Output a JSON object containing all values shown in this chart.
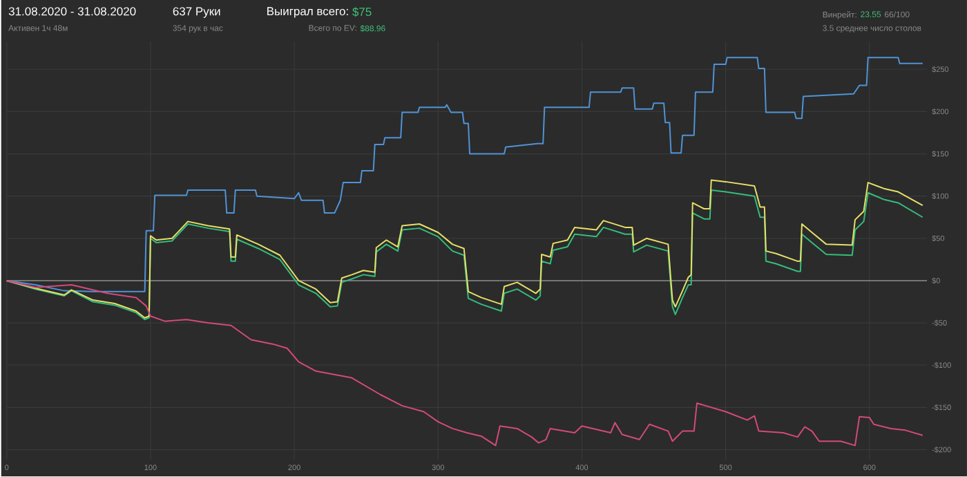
{
  "chart_data": {
    "type": "line",
    "title": "31.08.2020 - 31.08.2020",
    "subtitle": "Активен 1ч 48м",
    "annotations": [
      "637 Руки",
      "354 рук в час",
      "Выиграл всего:",
      "$75",
      "Всего по EV:",
      "$88.96",
      "Винрейт:",
      "23.55",
      "66/100",
      "3.5 среднее число столов"
    ],
    "xlim": [
      0,
      640
    ],
    "ylim": [
      -212,
      283
    ],
    "xticks": [
      0,
      100,
      200,
      300,
      400,
      500,
      600
    ],
    "yticks": [
      {
        "value": -200,
        "label": "-$200"
      },
      {
        "value": -150,
        "label": "-$150"
      },
      {
        "value": -100,
        "label": "-$100"
      },
      {
        "value": -50,
        "label": "-$50"
      },
      {
        "value": 0,
        "label": "$0"
      },
      {
        "value": 50,
        "label": "$50"
      },
      {
        "value": 100,
        "label": "$100"
      },
      {
        "value": 150,
        "label": "$150"
      },
      {
        "value": 200,
        "label": "$200"
      },
      {
        "value": 250,
        "label": "$250"
      }
    ],
    "grid": true,
    "marker": "none",
    "line_style": "solid",
    "ref_lines": [
      {
        "axis": "y",
        "value": 0,
        "color": "#8c8c8c"
      }
    ],
    "series": [
      {
        "color": "#4f93d6",
        "x": [
          0,
          20,
          40,
          60,
          96,
          97,
          102,
          103,
          125,
          126,
          152,
          153,
          158,
          159,
          173,
          174,
          200,
          203,
          205,
          220,
          221,
          228,
          232,
          234,
          246,
          247,
          255,
          256,
          262,
          263,
          274,
          275,
          286,
          287,
          305,
          306,
          309,
          317,
          318,
          321,
          322,
          346,
          347,
          369,
          373,
          374,
          405,
          406,
          427,
          428,
          436,
          437,
          449,
          450,
          457,
          458,
          461,
          462,
          469,
          470,
          478,
          479,
          491,
          492,
          500,
          501,
          522,
          523,
          527,
          528,
          548,
          549,
          553,
          554,
          589,
          593,
          598,
          599,
          620,
          621,
          637
        ],
        "values": [
          0,
          -5,
          -12,
          -13,
          -13,
          59,
          59,
          101,
          101,
          107,
          107,
          80,
          80,
          107,
          107,
          100,
          97,
          104,
          95,
          95,
          80,
          80,
          95,
          116,
          116,
          130,
          130,
          161,
          161,
          169,
          169,
          199,
          199,
          205,
          205,
          208,
          199,
          199,
          186,
          186,
          150,
          150,
          158,
          162,
          162,
          205,
          205,
          223,
          223,
          228,
          228,
          203,
          203,
          210,
          210,
          187,
          187,
          151,
          151,
          172,
          172,
          223,
          223,
          256,
          256,
          264,
          264,
          251,
          251,
          199,
          199,
          192,
          192,
          218,
          221,
          231,
          231,
          264,
          264,
          257,
          257
        ]
      },
      {
        "color": "#35bd7c",
        "x": [
          0,
          20,
          40,
          45,
          60,
          75,
          90,
          96,
          99,
          100,
          104,
          115,
          126,
          140,
          155,
          156,
          159,
          160,
          175,
          190,
          203,
          215,
          225,
          230,
          233,
          240,
          248,
          256,
          257,
          264,
          272,
          275,
          287,
          300,
          310,
          318,
          321,
          330,
          344,
          346,
          355,
          368,
          371,
          372,
          378,
          380,
          390,
          395,
          410,
          415,
          430,
          435,
          436,
          445,
          460,
          462,
          463,
          465,
          470,
          474,
          476,
          477,
          485,
          489,
          490,
          500,
          520,
          524,
          527,
          528,
          535,
          550,
          552,
          553,
          560,
          570,
          588,
          590,
          596,
          599,
          610,
          620,
          637
        ],
        "values": [
          0,
          -10,
          -18,
          -12,
          -25,
          -29,
          -38,
          -46,
          -44,
          50,
          45,
          47,
          67,
          62,
          58,
          23,
          23,
          49,
          38,
          25,
          -5,
          -15,
          -31,
          -30,
          -2,
          2,
          7,
          5,
          34,
          43,
          35,
          60,
          62,
          52,
          35,
          30,
          -21,
          -28,
          -36,
          -15,
          -10,
          -23,
          -18,
          23,
          20,
          36,
          40,
          55,
          52,
          63,
          55,
          55,
          34,
          42,
          35,
          -10,
          -31,
          -40,
          -20,
          -5,
          -5,
          80,
          73,
          73,
          107,
          105,
          100,
          75,
          75,
          23,
          20,
          11,
          11,
          55,
          45,
          31,
          30,
          60,
          70,
          104,
          96,
          92,
          75
        ]
      },
      {
        "color": "#e6e068",
        "x": [
          0,
          20,
          40,
          45,
          60,
          75,
          90,
          96,
          99,
          100,
          104,
          115,
          126,
          140,
          155,
          156,
          159,
          160,
          175,
          190,
          203,
          215,
          225,
          230,
          233,
          240,
          248,
          256,
          257,
          264,
          272,
          275,
          287,
          300,
          310,
          318,
          321,
          330,
          344,
          346,
          355,
          368,
          371,
          372,
          378,
          380,
          390,
          395,
          410,
          415,
          430,
          435,
          436,
          445,
          460,
          462,
          463,
          465,
          470,
          474,
          476,
          477,
          485,
          489,
          490,
          500,
          520,
          524,
          527,
          528,
          535,
          550,
          552,
          553,
          560,
          570,
          588,
          590,
          596,
          599,
          610,
          620,
          637
        ],
        "values": [
          0,
          -9,
          -17,
          -11,
          -23,
          -27,
          -36,
          -44,
          -42,
          53,
          48,
          50,
          70,
          65,
          61,
          28,
          28,
          54,
          43,
          30,
          0,
          -10,
          -26,
          -25,
          3,
          7,
          12,
          10,
          39,
          48,
          40,
          65,
          67,
          57,
          43,
          38,
          -13,
          -20,
          -28,
          -7,
          -2,
          -15,
          -10,
          31,
          28,
          44,
          48,
          63,
          60,
          71,
          63,
          63,
          42,
          50,
          43,
          -2,
          -23,
          -31,
          -12,
          4,
          7,
          92,
          85,
          85,
          119,
          117,
          112,
          87,
          87,
          35,
          32,
          23,
          23,
          67,
          57,
          43,
          42,
          72,
          82,
          116,
          109,
          105,
          89
        ]
      },
      {
        "color": "#d44a78",
        "x": [
          0,
          20,
          45,
          70,
          90,
          97,
          100,
          110,
          125,
          140,
          156,
          170,
          185,
          195,
          203,
          215,
          240,
          260,
          275,
          290,
          300,
          310,
          320,
          330,
          340,
          343,
          355,
          365,
          370,
          375,
          378,
          395,
          400,
          420,
          423,
          428,
          440,
          447,
          460,
          463,
          470,
          478,
          480,
          500,
          515,
          520,
          523,
          540,
          550,
          555,
          560,
          565,
          580,
          590,
          593,
          600,
          603,
          615,
          625,
          637
        ],
        "values": [
          0,
          -8,
          -5,
          -15,
          -20,
          -30,
          -42,
          -48,
          -46,
          -50,
          -53,
          -70,
          -75,
          -80,
          -96,
          -107,
          -115,
          -135,
          -148,
          -155,
          -167,
          -175,
          -180,
          -184,
          -195,
          -172,
          -175,
          -185,
          -192,
          -188,
          -175,
          -180,
          -172,
          -180,
          -168,
          -182,
          -188,
          -170,
          -178,
          -190,
          -178,
          -178,
          -145,
          -155,
          -165,
          -160,
          -178,
          -180,
          -185,
          -173,
          -178,
          -190,
          -190,
          -195,
          -161,
          -162,
          -170,
          -175,
          -177,
          -183
        ]
      }
    ]
  }
}
